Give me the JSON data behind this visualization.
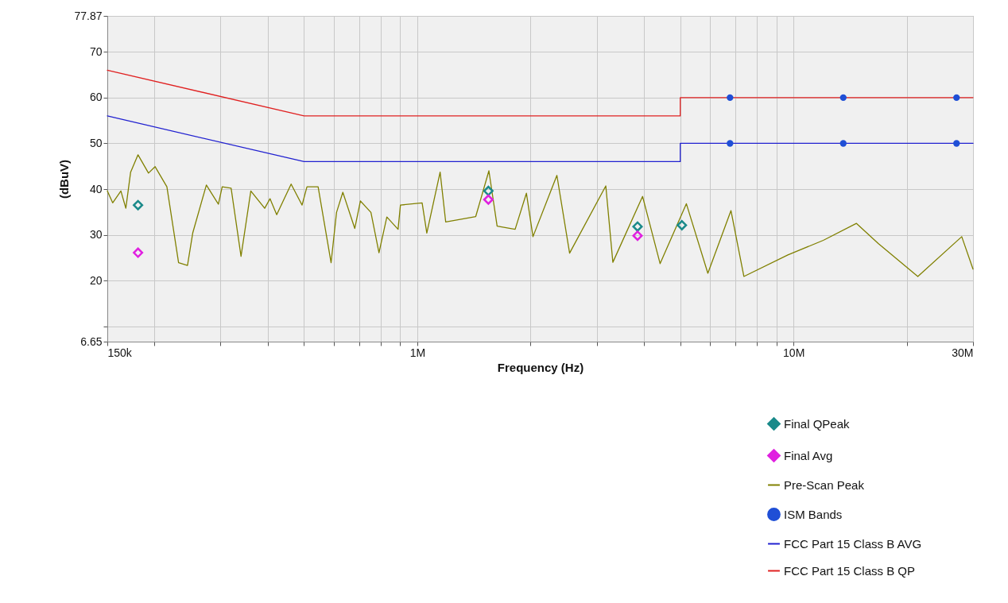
{
  "chart_data": {
    "type": "line",
    "xlabel": "Frequency (Hz)",
    "ylabel": "(dBuV)",
    "log": "x",
    "grid": true,
    "legend": "bottom right",
    "xlim": [
      150000,
      30000000
    ],
    "ylim": [
      6.65,
      77.87
    ],
    "xticks": [
      {
        "value": 150000,
        "label": "150k"
      },
      {
        "value": 200000,
        "label": null
      },
      {
        "value": 300000,
        "label": null
      },
      {
        "value": 400000,
        "label": null
      },
      {
        "value": 500000,
        "label": null
      },
      {
        "value": 600000,
        "label": null
      },
      {
        "value": 700000,
        "label": null
      },
      {
        "value": 800000,
        "label": null
      },
      {
        "value": 900000,
        "label": null
      },
      {
        "value": 1000000,
        "label": "1M"
      },
      {
        "value": 2000000,
        "label": null
      },
      {
        "value": 3000000,
        "label": null
      },
      {
        "value": 4000000,
        "label": null
      },
      {
        "value": 5000000,
        "label": null
      },
      {
        "value": 6000000,
        "label": null
      },
      {
        "value": 7000000,
        "label": null
      },
      {
        "value": 8000000,
        "label": null
      },
      {
        "value": 9000000,
        "label": null
      },
      {
        "value": 10000000,
        "label": "10M"
      },
      {
        "value": 20000000,
        "label": null
      },
      {
        "value": 30000000,
        "label": "30M"
      }
    ],
    "yticks": [
      6.65,
      {
        "value": 10,
        "label": null
      },
      20,
      30,
      40,
      50,
      60,
      70,
      77.87
    ],
    "series": [
      {
        "name": "Final QPeak",
        "type": "scatter",
        "marker": "diamond",
        "color": "#1a8a8a",
        "x": [
          181000,
          1545000,
          3850000,
          5050000
        ],
        "values": [
          36.5,
          39.6,
          31.8,
          32.1
        ]
      },
      {
        "name": "Final Avg",
        "type": "scatter",
        "marker": "diamond",
        "color": "#e020e0",
        "x": [
          181000,
          1545000,
          3850000
        ],
        "values": [
          26.1,
          37.7,
          29.8
        ]
      },
      {
        "name": "Pre-Scan Peak",
        "color": "#808000",
        "x": [
          150000,
          155000,
          163000,
          168000,
          173000,
          181000,
          193000,
          201000,
          216000,
          232000,
          245000,
          253000,
          275000,
          296000,
          303000,
          320000,
          340000,
          361000,
          393000,
          406000,
          423000,
          462000,
          494000,
          509000,
          545000,
          590000,
          610000,
          634000,
          682000,
          706000,
          753000,
          791000,
          830000,
          889000,
          902000,
          1030000,
          1060000,
          1150000,
          1190000,
          1430000,
          1550000,
          1630000,
          1820000,
          1950000,
          2030000,
          2350000,
          2540000,
          3170000,
          3310000,
          3970000,
          4420000,
          5190000,
          5920000,
          6820000,
          7380000,
          9660000,
          12000000,
          14700000,
          16800000,
          21400000,
          28000000,
          30000000
        ],
        "values": [
          39.6,
          37.0,
          39.6,
          35.8,
          43.7,
          47.5,
          43.5,
          44.9,
          40.5,
          23.9,
          23.3,
          30.4,
          40.9,
          36.7,
          40.5,
          40.2,
          25.3,
          39.6,
          35.8,
          37.9,
          34.4,
          41.1,
          36.5,
          40.5,
          40.5,
          23.9,
          34.9,
          39.3,
          31.4,
          37.4,
          34.9,
          26.1,
          33.9,
          31.2,
          36.5,
          37.0,
          30.4,
          43.7,
          32.8,
          34.0,
          44.0,
          31.9,
          31.2,
          39.1,
          29.6,
          43.0,
          26.0,
          40.7,
          24.0,
          38.4,
          23.7,
          36.8,
          21.6,
          35.3,
          20.9,
          25.6,
          28.8,
          32.5,
          28.1,
          20.9,
          29.6,
          22.5
        ]
      },
      {
        "name": "ISM Bands",
        "type": "scatter",
        "marker": "circle",
        "color": "#1f4fd6",
        "x": [
          6780000,
          6780000,
          13560000,
          13560000,
          27120000,
          27120000
        ],
        "values": [
          60,
          50,
          60,
          50,
          60,
          50
        ]
      },
      {
        "name": "FCC Part 15 Class B AVG",
        "color": "#2020d0",
        "x": [
          150000,
          500000,
          5000000,
          5000000,
          30000000
        ],
        "values": [
          56,
          46,
          46,
          50,
          50
        ]
      },
      {
        "name": "FCC Part 15 Class B QP",
        "color": "#e02020",
        "x": [
          150000,
          500000,
          5000000,
          5000000,
          30000000
        ],
        "values": [
          66,
          56,
          56,
          60,
          60
        ]
      }
    ]
  }
}
